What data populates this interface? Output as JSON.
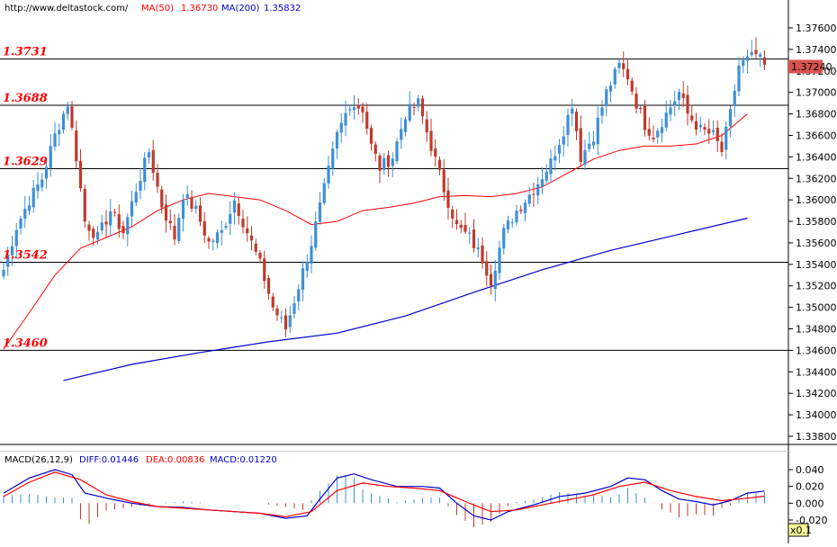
{
  "header": {
    "url": "http://www.deltastock.com/",
    "ma50_label": "MA(50)",
    "ma50_value": "1.36730",
    "ma200_label": "MA(200)",
    "ma200_value": "1.35832"
  },
  "macd_header": {
    "label": "MACD(26,12,9)",
    "diff": "DIFF:0.01446",
    "dea": "DEA:0.00836",
    "macd": "MACD:0.01220"
  },
  "zoom_label": "x0.1",
  "current_price": "1.37240",
  "colors": {
    "bull": "#3d8fd6",
    "bear": "#c0392b",
    "ma50": "#ff0000",
    "ma200": "#0000cc",
    "level": "#ff0000",
    "price_tag": "#d9534f"
  },
  "chart_data": [
    {
      "type": "candlestick",
      "title": "",
      "ylim": [
        1.337,
        1.378
      ],
      "y_ticks": [
        "1.37600",
        "1.37400",
        "1.37200",
        "1.37000",
        "1.36800",
        "1.36600",
        "1.36400",
        "1.36200",
        "1.36000",
        "1.35800",
        "1.35600",
        "1.35400",
        "1.35200",
        "1.35000",
        "1.34800",
        "1.34600",
        "1.34400",
        "1.34200",
        "1.34000",
        "1.33800"
      ],
      "levels": [
        "1.3731",
        "1.3688",
        "1.3629",
        "1.3542",
        "1.3460"
      ],
      "grid": false,
      "series": [
        {
          "name": "MA(50)"
        },
        {
          "name": "MA(200)"
        }
      ],
      "anchors": [
        [
          0,
          1.3535
        ],
        [
          3,
          1.3575
        ],
        [
          6,
          1.36
        ],
        [
          9,
          1.362
        ],
        [
          12,
          1.366
        ],
        [
          15,
          1.369
        ],
        [
          17,
          1.364
        ],
        [
          19,
          1.358
        ],
        [
          22,
          1.3565
        ],
        [
          25,
          1.359
        ],
        [
          28,
          1.357
        ],
        [
          31,
          1.361
        ],
        [
          34,
          1.3645
        ],
        [
          37,
          1.3595
        ],
        [
          40,
          1.3565
        ],
        [
          42,
          1.3605
        ],
        [
          45,
          1.359
        ],
        [
          48,
          1.356
        ],
        [
          51,
          1.357
        ],
        [
          54,
          1.36
        ],
        [
          57,
          1.357
        ],
        [
          60,
          1.354
        ],
        [
          63,
          1.35
        ],
        [
          66,
          1.348
        ],
        [
          69,
          1.352
        ],
        [
          72,
          1.356
        ],
        [
          75,
          1.361
        ],
        [
          78,
          1.366
        ],
        [
          81,
          1.369
        ],
        [
          84,
          1.3685
        ],
        [
          86,
          1.365
        ],
        [
          88,
          1.363
        ],
        [
          91,
          1.364
        ],
        [
          94,
          1.368
        ],
        [
          97,
          1.369
        ],
        [
          100,
          1.365
        ],
        [
          103,
          1.361
        ],
        [
          106,
          1.3575
        ],
        [
          109,
          1.3565
        ],
        [
          112,
          1.3545
        ],
        [
          114,
          1.3525
        ],
        [
          117,
          1.357
        ],
        [
          120,
          1.359
        ],
        [
          124,
          1.361
        ],
        [
          128,
          1.3635
        ],
        [
          131,
          1.3665
        ],
        [
          133,
          1.369
        ],
        [
          135,
          1.364
        ],
        [
          138,
          1.366
        ],
        [
          141,
          1.37
        ],
        [
          144,
          1.3725
        ],
        [
          146,
          1.3715
        ],
        [
          148,
          1.369
        ],
        [
          150,
          1.367
        ],
        [
          152,
          1.366
        ],
        [
          155,
          1.368
        ],
        [
          158,
          1.37
        ],
        [
          160,
          1.368
        ],
        [
          163,
          1.3665
        ],
        [
          166,
          1.366
        ],
        [
          168,
          1.3645
        ],
        [
          170,
          1.368
        ],
        [
          172,
          1.3725
        ],
        [
          176,
          1.3735
        ],
        [
          178,
          1.3724
        ]
      ],
      "ma50": [
        [
          0,
          1.3461
        ],
        [
          6,
          1.3495
        ],
        [
          12,
          1.353
        ],
        [
          18,
          1.3555
        ],
        [
          24,
          1.3565
        ],
        [
          30,
          1.3575
        ],
        [
          36,
          1.359
        ],
        [
          42,
          1.36
        ],
        [
          48,
          1.3606
        ],
        [
          54,
          1.3603
        ],
        [
          60,
          1.36
        ],
        [
          66,
          1.359
        ],
        [
          72,
          1.3577
        ],
        [
          78,
          1.358
        ],
        [
          84,
          1.359
        ],
        [
          90,
          1.3593
        ],
        [
          96,
          1.3597
        ],
        [
          102,
          1.3603
        ],
        [
          108,
          1.3604
        ],
        [
          114,
          1.3603
        ],
        [
          120,
          1.3606
        ],
        [
          126,
          1.3612
        ],
        [
          132,
          1.3625
        ],
        [
          138,
          1.3638
        ],
        [
          144,
          1.3646
        ],
        [
          150,
          1.365
        ],
        [
          156,
          1.365
        ],
        [
          162,
          1.3652
        ],
        [
          168,
          1.366
        ],
        [
          174,
          1.368
        ]
      ],
      "ma200": [
        [
          14,
          1.3432
        ],
        [
          30,
          1.3447
        ],
        [
          46,
          1.3458
        ],
        [
          62,
          1.3468
        ],
        [
          78,
          1.3476
        ],
        [
          94,
          1.3492
        ],
        [
          110,
          1.3514
        ],
        [
          126,
          1.3535
        ],
        [
          142,
          1.3553
        ],
        [
          158,
          1.3568
        ],
        [
          174,
          1.3583
        ]
      ]
    },
    {
      "type": "line",
      "title": "MACD(26,12,9)",
      "ylim": [
        -0.03,
        0.05
      ],
      "y_ticks": [
        "0.040",
        "0.020",
        "0.000",
        "-0.020"
      ],
      "series": [
        {
          "name": "DIFF",
          "values_at": [
            [
              0,
              0.012
            ],
            [
              6,
              0.03
            ],
            [
              12,
              0.04
            ],
            [
              16,
              0.034
            ],
            [
              19,
              0.012
            ],
            [
              25,
              0.005
            ],
            [
              30,
              0.0
            ],
            [
              36,
              -0.004
            ],
            [
              42,
              -0.005
            ],
            [
              48,
              -0.008
            ],
            [
              54,
              -0.01
            ],
            [
              60,
              -0.012
            ],
            [
              66,
              -0.018
            ],
            [
              71,
              -0.015
            ],
            [
              74,
              0.005
            ],
            [
              78,
              0.03
            ],
            [
              82,
              0.035
            ],
            [
              86,
              0.028
            ],
            [
              92,
              0.02
            ],
            [
              98,
              0.02
            ],
            [
              102,
              0.018
            ],
            [
              106,
              0.0
            ],
            [
              110,
              -0.015
            ],
            [
              114,
              -0.02
            ],
            [
              118,
              -0.01
            ],
            [
              124,
              -0.002
            ],
            [
              130,
              0.008
            ],
            [
              136,
              0.012
            ],
            [
              142,
              0.02
            ],
            [
              146,
              0.03
            ],
            [
              150,
              0.028
            ],
            [
              154,
              0.015
            ],
            [
              158,
              0.005
            ],
            [
              162,
              0.002
            ],
            [
              166,
              -0.002
            ],
            [
              170,
              0.003
            ],
            [
              174,
              0.012
            ],
            [
              178,
              0.0145
            ]
          ]
        },
        {
          "name": "DEA",
          "values_at": [
            [
              0,
              0.008
            ],
            [
              6,
              0.025
            ],
            [
              12,
              0.037
            ],
            [
              18,
              0.028
            ],
            [
              24,
              0.01
            ],
            [
              30,
              0.002
            ],
            [
              36,
              -0.004
            ],
            [
              42,
              -0.006
            ],
            [
              48,
              -0.008
            ],
            [
              54,
              -0.01
            ],
            [
              60,
              -0.012
            ],
            [
              66,
              -0.016
            ],
            [
              72,
              -0.01
            ],
            [
              78,
              0.015
            ],
            [
              84,
              0.024
            ],
            [
              90,
              0.02
            ],
            [
              96,
              0.018
            ],
            [
              102,
              0.015
            ],
            [
              108,
              0.002
            ],
            [
              114,
              -0.01
            ],
            [
              120,
              -0.008
            ],
            [
              126,
              -0.002
            ],
            [
              132,
              0.004
            ],
            [
              138,
              0.01
            ],
            [
              144,
              0.02
            ],
            [
              150,
              0.025
            ],
            [
              156,
              0.015
            ],
            [
              162,
              0.008
            ],
            [
              168,
              0.003
            ],
            [
              174,
              0.006
            ],
            [
              178,
              0.0084
            ]
          ]
        }
      ]
    }
  ]
}
